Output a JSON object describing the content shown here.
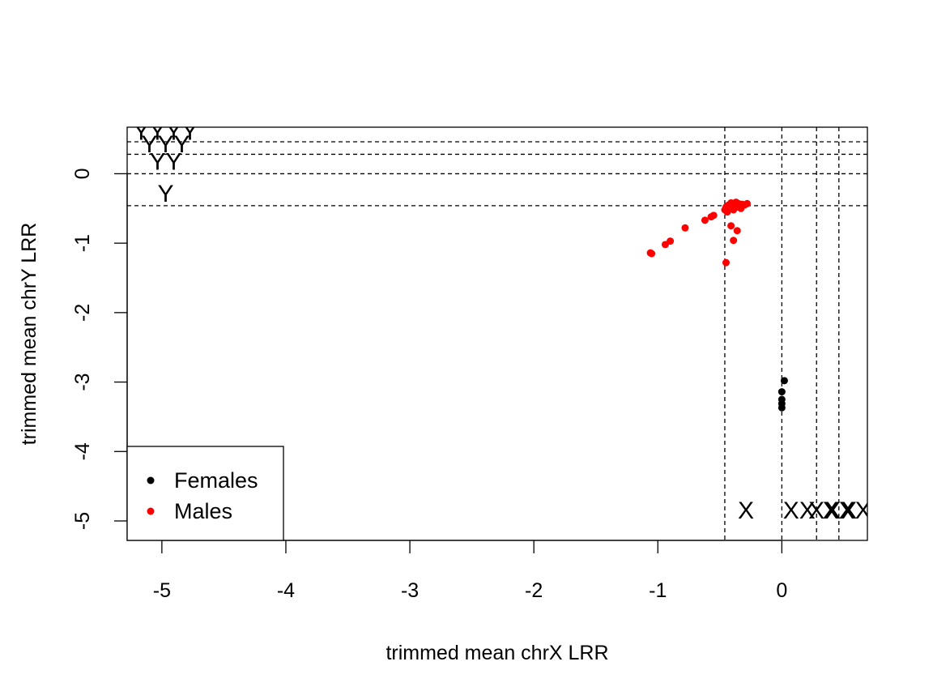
{
  "chart_data": {
    "type": "scatter",
    "xlabel": "trimmed mean chrX LRR",
    "ylabel": "trimmed mean chrY LRR",
    "xlim": [
      -5.28,
      0.69
    ],
    "ylim": [
      -5.28,
      0.67
    ],
    "x_ticks": [
      -5,
      -4,
      -3,
      -2,
      -1,
      0
    ],
    "x_tick_labels": [
      "-5",
      "-4",
      "-3",
      "-2",
      "-1",
      "0"
    ],
    "y_ticks": [
      -5,
      -4,
      -3,
      -2,
      -1,
      0
    ],
    "y_tick_labels": [
      "-5",
      "-4",
      "-3",
      "-2",
      "-1",
      "0"
    ],
    "vlines": [
      -0.46,
      0,
      0.28,
      0.46
    ],
    "hlines": [
      -0.46,
      0,
      0.28,
      0.46
    ],
    "grid": false,
    "legend_position": "bottom-left",
    "series": [
      {
        "name": "Females",
        "color": "#000000",
        "points": [
          [
            0.02,
            -2.98
          ],
          [
            0.0,
            -3.14
          ],
          [
            0.0,
            -3.25
          ],
          [
            0.0,
            -3.31
          ],
          [
            0.0,
            -3.37
          ]
        ]
      },
      {
        "name": "Males",
        "color": "#ff0000",
        "points": [
          [
            -1.06,
            -1.14
          ],
          [
            -1.05,
            -1.15
          ],
          [
            -0.94,
            -1.02
          ],
          [
            -0.9,
            -0.97
          ],
          [
            -0.78,
            -0.78
          ],
          [
            -0.62,
            -0.67
          ],
          [
            -0.57,
            -0.62
          ],
          [
            -0.55,
            -0.6
          ],
          [
            -0.46,
            -0.52
          ],
          [
            -0.45,
            -0.48
          ],
          [
            -0.44,
            -0.55
          ],
          [
            -0.43,
            -0.45
          ],
          [
            -0.42,
            -0.5
          ],
          [
            -0.41,
            -0.42
          ],
          [
            -0.4,
            -0.47
          ],
          [
            -0.39,
            -0.52
          ],
          [
            -0.38,
            -0.44
          ],
          [
            -0.37,
            -0.41
          ],
          [
            -0.36,
            -0.48
          ],
          [
            -0.35,
            -0.43
          ],
          [
            -0.34,
            -0.46
          ],
          [
            -0.33,
            -0.5
          ],
          [
            -0.32,
            -0.44
          ],
          [
            -0.3,
            -0.45
          ],
          [
            -0.28,
            -0.43
          ],
          [
            -0.41,
            -0.75
          ],
          [
            -0.39,
            -0.96
          ],
          [
            -0.36,
            -0.82
          ],
          [
            -0.45,
            -1.28
          ]
        ]
      }
    ],
    "annotations": [
      {
        "text": "X",
        "x": -0.29,
        "y": -4.87
      },
      {
        "text": "XX",
        "x": 0.14,
        "y": -4.87
      },
      {
        "text": "XXX",
        "x": 0.41,
        "y": -4.87
      },
      {
        "text": "XXXX",
        "x": 0.59,
        "y": -4.87
      },
      {
        "text": "Y",
        "x": -4.97,
        "y": -0.31
      },
      {
        "text": "YY",
        "x": -4.97,
        "y": 0.15
      },
      {
        "text": "YYY",
        "x": -4.97,
        "y": 0.4
      },
      {
        "text": "YYYY",
        "x": -4.97,
        "y": 0.58
      }
    ]
  }
}
